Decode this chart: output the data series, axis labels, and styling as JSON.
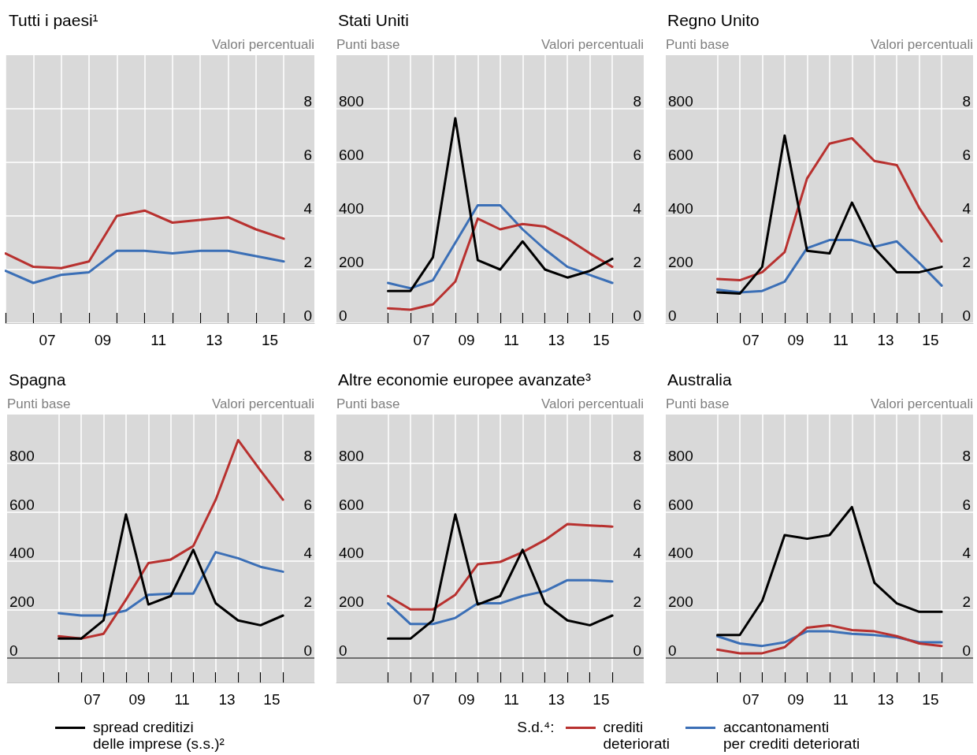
{
  "chart_data": [
    {
      "type": "line",
      "title": "Tutti i paesi¹",
      "y2label": "Valori percentuali",
      "x": [
        2005.5,
        2006.5,
        2007.5,
        2008.5,
        2009.5,
        2010.5,
        2011.5,
        2012.5,
        2013.5,
        2014.5,
        2015.5
      ],
      "xlim": [
        2005.5,
        2016.6
      ],
      "xticks": [
        {
          "value": 2005.5,
          "label": null
        },
        {
          "value": 2006.5,
          "label": null
        },
        {
          "value": 2007.5,
          "label": null
        },
        {
          "value": 2008.5,
          "label": null
        },
        {
          "value": 2009.5,
          "label": null
        },
        {
          "value": 2010.5,
          "label": null
        },
        {
          "value": 2011.5,
          "label": null
        },
        {
          "value": 2012.5,
          "label": null
        },
        {
          "value": 2013.5,
          "label": null
        },
        {
          "value": 2014.5,
          "label": null
        },
        {
          "value": 2015.5,
          "label": null
        },
        {
          "value": 2007,
          "label": "07"
        },
        {
          "value": 2009,
          "label": "09"
        },
        {
          "value": 2011,
          "label": "11"
        },
        {
          "value": 2013,
          "label": "13"
        },
        {
          "value": 2015,
          "label": "15"
        }
      ],
      "y2lim": [
        0,
        10
      ],
      "y2ticks": [
        0,
        2,
        4,
        6,
        8
      ],
      "grid": true,
      "series": [
        {
          "axis": "y2",
          "color": "#b8312f",
          "values": [
            2.6,
            2.1,
            2.05,
            2.3,
            4.0,
            4.2,
            3.75,
            3.85,
            3.95,
            3.5,
            3.15
          ]
        },
        {
          "axis": "y2",
          "color": "#3b6fb6",
          "values": [
            1.95,
            1.5,
            1.8,
            1.9,
            2.7,
            2.7,
            2.6,
            2.7,
            2.7,
            2.5,
            2.3
          ]
        }
      ]
    },
    {
      "type": "line",
      "title": "Stati Uniti",
      "ylabel": "Punti base",
      "y2label": "Valori percentuali",
      "x": [
        2005.5,
        2006.5,
        2007.5,
        2008.5,
        2009.5,
        2010.5,
        2011.5,
        2012.5,
        2013.5,
        2014.5,
        2015.5
      ],
      "xlim": [
        2003.2,
        2016.9
      ],
      "xticks": [
        {
          "value": 2005.5,
          "label": null
        },
        {
          "value": 2006.5,
          "label": null
        },
        {
          "value": 2007.5,
          "label": null
        },
        {
          "value": 2008.5,
          "label": null
        },
        {
          "value": 2009.5,
          "label": null
        },
        {
          "value": 2010.5,
          "label": null
        },
        {
          "value": 2011.5,
          "label": null
        },
        {
          "value": 2012.5,
          "label": null
        },
        {
          "value": 2013.5,
          "label": null
        },
        {
          "value": 2014.5,
          "label": null
        },
        {
          "value": 2015.5,
          "label": null
        },
        {
          "value": 2007,
          "label": "07"
        },
        {
          "value": 2009,
          "label": "09"
        },
        {
          "value": 2011,
          "label": "11"
        },
        {
          "value": 2013,
          "label": "13"
        },
        {
          "value": 2015,
          "label": "15"
        }
      ],
      "ylim": [
        0,
        1000
      ],
      "yticks": [
        0,
        200,
        400,
        600,
        800
      ],
      "y2lim": [
        0,
        10
      ],
      "y2ticks": [
        0,
        2,
        4,
        6,
        8
      ],
      "grid": true,
      "series": [
        {
          "color": "#000000",
          "values": [
            120,
            120,
            245,
            765,
            235,
            200,
            305,
            200,
            170,
            195,
            240
          ]
        },
        {
          "axis": "y2",
          "color": "#b8312f",
          "values": [
            0.55,
            0.5,
            0.7,
            1.55,
            3.9,
            3.5,
            3.7,
            3.6,
            3.15,
            2.6,
            2.1
          ]
        },
        {
          "axis": "y2",
          "color": "#3b6fb6",
          "values": [
            1.5,
            1.3,
            1.6,
            3.0,
            4.4,
            4.4,
            3.5,
            2.75,
            2.1,
            1.8,
            1.5
          ]
        }
      ]
    },
    {
      "type": "line",
      "title": "Regno Unito",
      "ylabel": "Punti base",
      "y2label": "Valori percentuali",
      "x": [
        2005.5,
        2006.5,
        2007.5,
        2008.5,
        2009.5,
        2010.5,
        2011.5,
        2012.5,
        2013.5,
        2014.5,
        2015.5
      ],
      "xlim": [
        2003.2,
        2016.9
      ],
      "xticks": [
        {
          "value": 2005.5,
          "label": null
        },
        {
          "value": 2006.5,
          "label": null
        },
        {
          "value": 2007.5,
          "label": null
        },
        {
          "value": 2008.5,
          "label": null
        },
        {
          "value": 2009.5,
          "label": null
        },
        {
          "value": 2010.5,
          "label": null
        },
        {
          "value": 2011.5,
          "label": null
        },
        {
          "value": 2012.5,
          "label": null
        },
        {
          "value": 2013.5,
          "label": null
        },
        {
          "value": 2014.5,
          "label": null
        },
        {
          "value": 2015.5,
          "label": null
        },
        {
          "value": 2007,
          "label": "07"
        },
        {
          "value": 2009,
          "label": "09"
        },
        {
          "value": 2011,
          "label": "11"
        },
        {
          "value": 2013,
          "label": "13"
        },
        {
          "value": 2015,
          "label": "15"
        }
      ],
      "ylim": [
        0,
        1000
      ],
      "yticks": [
        0,
        200,
        400,
        600,
        800
      ],
      "y2lim": [
        0,
        10
      ],
      "y2ticks": [
        0,
        2,
        4,
        6,
        8
      ],
      "grid": true,
      "series": [
        {
          "color": "#000000",
          "values": [
            115,
            110,
            210,
            700,
            270,
            260,
            450,
            280,
            190,
            190,
            210
          ]
        },
        {
          "axis": "y2",
          "color": "#b8312f",
          "values": [
            1.65,
            1.6,
            1.9,
            2.65,
            5.4,
            6.7,
            6.9,
            6.05,
            5.9,
            4.3,
            3.05
          ]
        },
        {
          "axis": "y2",
          "color": "#3b6fb6",
          "values": [
            1.25,
            1.15,
            1.2,
            1.55,
            2.8,
            3.1,
            3.1,
            2.85,
            3.05,
            2.25,
            1.4
          ]
        }
      ]
    },
    {
      "type": "line",
      "title": "Spagna",
      "ylabel": "Punti base",
      "y2label": "Valori percentuali",
      "x": [
        2005.5,
        2006.5,
        2007.5,
        2008.5,
        2009.5,
        2010.5,
        2011.5,
        2012.5,
        2013.5,
        2014.5,
        2015.5
      ],
      "xlim": [
        2003.2,
        2016.9
      ],
      "xticks": [
        {
          "value": 2005.5,
          "label": null
        },
        {
          "value": 2006.5,
          "label": null
        },
        {
          "value": 2007.5,
          "label": null
        },
        {
          "value": 2008.5,
          "label": null
        },
        {
          "value": 2009.5,
          "label": null
        },
        {
          "value": 2010.5,
          "label": null
        },
        {
          "value": 2011.5,
          "label": null
        },
        {
          "value": 2012.5,
          "label": null
        },
        {
          "value": 2013.5,
          "label": null
        },
        {
          "value": 2014.5,
          "label": null
        },
        {
          "value": 2015.5,
          "label": null
        },
        {
          "value": 2007,
          "label": "07"
        },
        {
          "value": 2009,
          "label": "09"
        },
        {
          "value": 2011,
          "label": "11"
        },
        {
          "value": 2013,
          "label": "13"
        },
        {
          "value": 2015,
          "label": "15"
        }
      ],
      "ylim": [
        -100,
        1000
      ],
      "yticks": [
        0,
        200,
        400,
        600,
        800
      ],
      "y2lim": [
        -1,
        10
      ],
      "y2ticks": [
        0,
        2,
        4,
        6,
        8
      ],
      "grid": true,
      "ref_lines": [
        {
          "axis": "y",
          "value": 0,
          "color": "#404040"
        }
      ],
      "series": [
        {
          "color": "#000000",
          "values": [
            80,
            80,
            155,
            590,
            220,
            255,
            445,
            225,
            155,
            135,
            175
          ]
        },
        {
          "axis": "y2",
          "color": "#b8312f",
          "values": [
            0.9,
            0.8,
            1.0,
            2.4,
            3.9,
            4.05,
            4.6,
            6.5,
            8.95,
            7.7,
            6.5
          ]
        },
        {
          "axis": "y2",
          "color": "#3b6fb6",
          "values": [
            1.85,
            1.75,
            1.75,
            1.95,
            2.6,
            2.65,
            2.65,
            4.35,
            4.1,
            3.75,
            3.55
          ]
        }
      ]
    },
    {
      "type": "line",
      "title": "Altre economie europee avanzate³",
      "ylabel": "Punti base",
      "y2label": "Valori percentuali",
      "x": [
        2005.5,
        2006.5,
        2007.5,
        2008.5,
        2009.5,
        2010.5,
        2011.5,
        2012.5,
        2013.5,
        2014.5,
        2015.5
      ],
      "xlim": [
        2003.2,
        2016.9
      ],
      "xticks": [
        {
          "value": 2005.5,
          "label": null
        },
        {
          "value": 2006.5,
          "label": null
        },
        {
          "value": 2007.5,
          "label": null
        },
        {
          "value": 2008.5,
          "label": null
        },
        {
          "value": 2009.5,
          "label": null
        },
        {
          "value": 2010.5,
          "label": null
        },
        {
          "value": 2011.5,
          "label": null
        },
        {
          "value": 2012.5,
          "label": null
        },
        {
          "value": 2013.5,
          "label": null
        },
        {
          "value": 2014.5,
          "label": null
        },
        {
          "value": 2015.5,
          "label": null
        },
        {
          "value": 2007,
          "label": "07"
        },
        {
          "value": 2009,
          "label": "09"
        },
        {
          "value": 2011,
          "label": "11"
        },
        {
          "value": 2013,
          "label": "13"
        },
        {
          "value": 2015,
          "label": "15"
        }
      ],
      "ylim": [
        -100,
        1000
      ],
      "yticks": [
        0,
        200,
        400,
        600,
        800
      ],
      "y2lim": [
        -1,
        10
      ],
      "y2ticks": [
        0,
        2,
        4,
        6,
        8
      ],
      "grid": true,
      "ref_lines": [
        {
          "axis": "y",
          "value": 0,
          "color": "#404040"
        }
      ],
      "series": [
        {
          "color": "#000000",
          "values": [
            80,
            80,
            155,
            590,
            220,
            255,
            445,
            225,
            155,
            135,
            175
          ]
        },
        {
          "axis": "y2",
          "color": "#b8312f",
          "values": [
            2.55,
            2.0,
            2.0,
            2.6,
            3.85,
            3.95,
            4.35,
            4.85,
            5.5,
            5.45,
            5.4
          ]
        },
        {
          "axis": "y2",
          "color": "#3b6fb6",
          "values": [
            2.25,
            1.4,
            1.4,
            1.65,
            2.25,
            2.25,
            2.55,
            2.75,
            3.2,
            3.2,
            3.15
          ]
        }
      ]
    },
    {
      "type": "line",
      "title": "Australia",
      "ylabel": "Punti base",
      "y2label": "Valori percentuali",
      "legend": "bottom",
      "legend_title": "S.d.⁴:",
      "x": [
        2005.5,
        2006.5,
        2007.5,
        2008.5,
        2009.5,
        2010.5,
        2011.5,
        2012.5,
        2013.5,
        2014.5,
        2015.5
      ],
      "xlim": [
        2003.2,
        2016.9
      ],
      "xticks": [
        {
          "value": 2005.5,
          "label": null
        },
        {
          "value": 2006.5,
          "label": null
        },
        {
          "value": 2007.5,
          "label": null
        },
        {
          "value": 2008.5,
          "label": null
        },
        {
          "value": 2009.5,
          "label": null
        },
        {
          "value": 2010.5,
          "label": null
        },
        {
          "value": 2011.5,
          "label": null
        },
        {
          "value": 2012.5,
          "label": null
        },
        {
          "value": 2013.5,
          "label": null
        },
        {
          "value": 2014.5,
          "label": null
        },
        {
          "value": 2015.5,
          "label": null
        },
        {
          "value": 2007,
          "label": "07"
        },
        {
          "value": 2009,
          "label": "09"
        },
        {
          "value": 2011,
          "label": "11"
        },
        {
          "value": 2013,
          "label": "13"
        },
        {
          "value": 2015,
          "label": "15"
        }
      ],
      "ylim": [
        -100,
        1000
      ],
      "yticks": [
        0,
        200,
        400,
        600,
        800
      ],
      "y2lim": [
        -1,
        10
      ],
      "y2ticks": [
        0,
        2,
        4,
        6,
        8
      ],
      "grid": true,
      "ref_lines": [
        {
          "axis": "y",
          "value": 0,
          "color": "#404040"
        }
      ],
      "series": [
        {
          "name": "spread creditizi\ndelle imprese (s.s.)²",
          "color": "#000000",
          "values": [
            95,
            95,
            235,
            505,
            490,
            505,
            620,
            310,
            225,
            190,
            190
          ]
        },
        {
          "name": "crediti\ndeteriorati",
          "axis": "y2",
          "color": "#b8312f",
          "values": [
            0.35,
            0.2,
            0.2,
            0.45,
            1.25,
            1.35,
            1.15,
            1.1,
            0.9,
            0.6,
            0.5
          ]
        },
        {
          "name": "accantonamenti\nper crediti deteriorati",
          "axis": "y2",
          "color": "#3b6fb6",
          "values": [
            0.9,
            0.6,
            0.5,
            0.65,
            1.1,
            1.1,
            1.0,
            0.95,
            0.85,
            0.65,
            0.65
          ]
        }
      ]
    }
  ]
}
